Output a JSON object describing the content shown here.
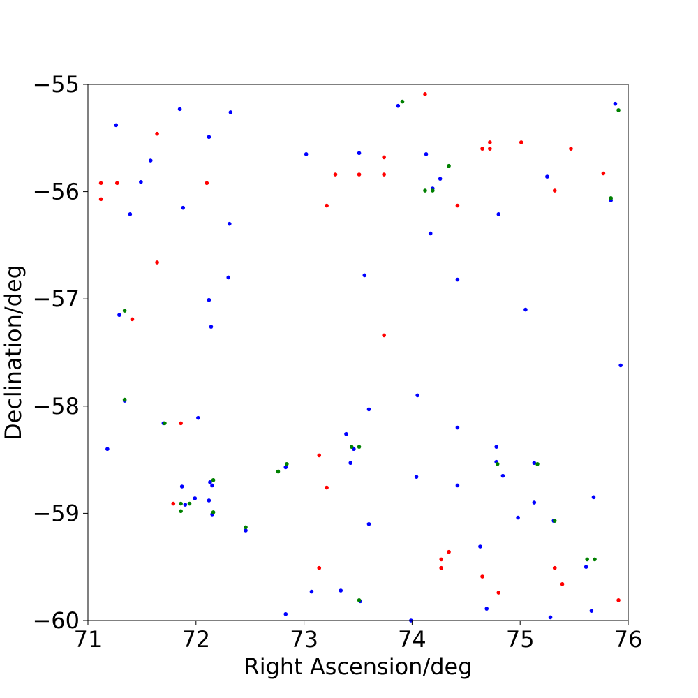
{
  "chart_data": {
    "type": "scatter",
    "xlabel": "Right Ascension/deg",
    "ylabel": "Declination/deg",
    "xlim": [
      71,
      76
    ],
    "ylim": [
      -60,
      -55
    ],
    "xticks": [
      71,
      72,
      73,
      74,
      75,
      76
    ],
    "yticks": [
      -60,
      -59,
      -58,
      -57,
      -56,
      -55
    ],
    "xtick_labels": [
      "71",
      "72",
      "73",
      "74",
      "75",
      "76"
    ],
    "ytick_labels": [
      "−60",
      "−59",
      "−58",
      "−57",
      "−56",
      "−55"
    ],
    "grid": false,
    "series": [
      {
        "color": "#0000ff",
        "points": [
          [
            71.85,
            -55.23
          ],
          [
            71.26,
            -55.38
          ],
          [
            72.32,
            -55.26
          ],
          [
            71.58,
            -55.71
          ],
          [
            71.49,
            -55.91
          ],
          [
            72.12,
            -55.49
          ],
          [
            71.39,
            -56.21
          ],
          [
            71.88,
            -56.15
          ],
          [
            72.31,
            -56.3
          ],
          [
            73.02,
            -55.65
          ],
          [
            73.51,
            -55.64
          ],
          [
            74.13,
            -55.65
          ],
          [
            74.26,
            -55.88
          ],
          [
            74.19,
            -55.97
          ],
          [
            73.87,
            -55.2
          ],
          [
            74.8,
            -56.21
          ],
          [
            74.17,
            -56.39
          ],
          [
            73.56,
            -56.78
          ],
          [
            74.42,
            -56.82
          ],
          [
            75.25,
            -55.86
          ],
          [
            75.84,
            -56.08
          ],
          [
            75.88,
            -55.18
          ],
          [
            72.3,
            -56.8
          ],
          [
            72.12,
            -57.01
          ],
          [
            72.14,
            -57.26
          ],
          [
            71.29,
            -57.15
          ],
          [
            75.05,
            -57.1
          ],
          [
            75.93,
            -57.62
          ],
          [
            71.34,
            -57.95
          ],
          [
            71.7,
            -58.16
          ],
          [
            72.02,
            -58.11
          ],
          [
            71.18,
            -58.4
          ],
          [
            73.6,
            -58.03
          ],
          [
            74.05,
            -57.9
          ],
          [
            74.42,
            -58.2
          ],
          [
            73.39,
            -58.26
          ],
          [
            73.43,
            -58.53
          ],
          [
            73.46,
            -58.4
          ],
          [
            72.83,
            -58.57
          ],
          [
            74.78,
            -58.38
          ],
          [
            74.78,
            -58.52
          ],
          [
            75.13,
            -58.53
          ],
          [
            74.84,
            -58.65
          ],
          [
            74.04,
            -58.66
          ],
          [
            74.42,
            -58.74
          ],
          [
            71.87,
            -58.75
          ],
          [
            72.13,
            -58.71
          ],
          [
            72.15,
            -58.74
          ],
          [
            71.99,
            -58.86
          ],
          [
            71.9,
            -58.92
          ],
          [
            72.12,
            -58.88
          ],
          [
            72.15,
            -59.01
          ],
          [
            73.6,
            -59.1
          ],
          [
            72.46,
            -59.16
          ],
          [
            75.13,
            -58.9
          ],
          [
            75.68,
            -58.85
          ],
          [
            74.98,
            -59.04
          ],
          [
            75.31,
            -59.07
          ],
          [
            74.63,
            -59.31
          ],
          [
            75.61,
            -59.5
          ],
          [
            73.07,
            -59.73
          ],
          [
            73.34,
            -59.72
          ],
          [
            73.52,
            -59.82
          ],
          [
            74.69,
            -59.89
          ],
          [
            75.66,
            -59.91
          ],
          [
            72.83,
            -59.94
          ],
          [
            73.99,
            -60.0
          ],
          [
            75.28,
            -59.97
          ]
        ]
      },
      {
        "color": "#ff0000",
        "points": [
          [
            71.12,
            -55.92
          ],
          [
            71.12,
            -56.07
          ],
          [
            71.27,
            -55.92
          ],
          [
            71.64,
            -55.46
          ],
          [
            72.1,
            -55.92
          ],
          [
            73.29,
            -55.84
          ],
          [
            73.51,
            -55.84
          ],
          [
            73.74,
            -55.68
          ],
          [
            73.74,
            -55.84
          ],
          [
            73.21,
            -56.13
          ],
          [
            74.12,
            -55.09
          ],
          [
            74.42,
            -56.13
          ],
          [
            74.65,
            -55.6
          ],
          [
            74.72,
            -55.54
          ],
          [
            74.72,
            -55.6
          ],
          [
            75.01,
            -55.54
          ],
          [
            75.32,
            -55.99
          ],
          [
            75.47,
            -55.6
          ],
          [
            75.77,
            -55.83
          ],
          [
            71.64,
            -56.66
          ],
          [
            71.41,
            -57.19
          ],
          [
            73.74,
            -57.34
          ],
          [
            71.86,
            -58.16
          ],
          [
            73.14,
            -58.46
          ],
          [
            73.21,
            -58.76
          ],
          [
            71.79,
            -58.91
          ],
          [
            74.27,
            -59.43
          ],
          [
            74.34,
            -59.36
          ],
          [
            74.27,
            -59.51
          ],
          [
            73.14,
            -59.51
          ],
          [
            74.65,
            -59.59
          ],
          [
            74.8,
            -59.74
          ],
          [
            75.32,
            -59.51
          ],
          [
            75.39,
            -59.66
          ],
          [
            75.91,
            -59.81
          ]
        ]
      },
      {
        "color": "#008000",
        "points": [
          [
            73.91,
            -55.16
          ],
          [
            74.34,
            -55.76
          ],
          [
            74.12,
            -55.99
          ],
          [
            74.19,
            -55.99
          ],
          [
            75.84,
            -56.06
          ],
          [
            75.91,
            -55.24
          ],
          [
            71.34,
            -57.11
          ],
          [
            71.34,
            -57.94
          ],
          [
            71.71,
            -58.16
          ],
          [
            73.44,
            -58.38
          ],
          [
            73.51,
            -58.38
          ],
          [
            72.84,
            -58.54
          ],
          [
            72.76,
            -58.61
          ],
          [
            72.16,
            -58.69
          ],
          [
            72.16,
            -58.99
          ],
          [
            71.86,
            -58.91
          ],
          [
            71.94,
            -58.91
          ],
          [
            71.86,
            -58.98
          ],
          [
            72.46,
            -59.13
          ],
          [
            74.79,
            -58.54
          ],
          [
            75.16,
            -58.54
          ],
          [
            75.32,
            -59.07
          ],
          [
            75.62,
            -59.43
          ],
          [
            75.69,
            -59.43
          ],
          [
            73.51,
            -59.81
          ]
        ]
      }
    ]
  }
}
